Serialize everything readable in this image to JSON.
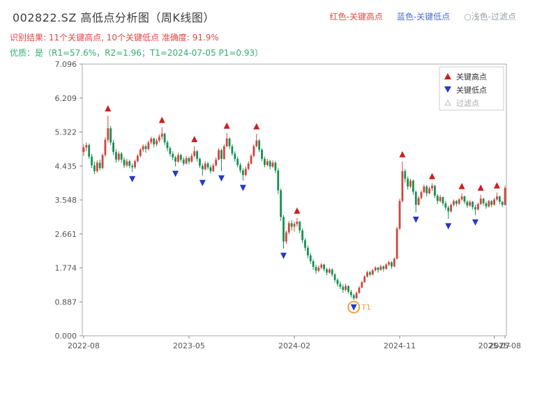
{
  "header": {
    "title": "002822.SZ 高低点分析图（周K线图）",
    "legend_inline": [
      {
        "label": "红色-关键高点",
        "color": "#e04a44"
      },
      {
        "label": "蓝色-关键低点",
        "color": "#4f6bd0"
      },
      {
        "label": "○浅色-过滤点",
        "color": "#9aa0a8"
      }
    ],
    "result_line": "识别结果: 11个关键高点, 10个关键低点  准确度: 91.9%",
    "result_color": "#e34545",
    "quality_line": "优质：是（R1=57.6%，R2=1.96；T1=2024-07-05 P1=0.93）",
    "quality_color": "#2fae6e"
  },
  "chart_data": {
    "type": "candlestick",
    "title": "002822.SZ 高低点分析图（周K线图）",
    "ylim": [
      0,
      7.096
    ],
    "y_ticks": [
      0,
      0.887,
      1.774,
      2.661,
      3.548,
      4.435,
      5.322,
      6.209,
      7.096
    ],
    "x_ticks": [
      {
        "week": 0,
        "label": "2022-08"
      },
      {
        "week": 39,
        "label": "2023-05"
      },
      {
        "week": 78,
        "label": "2024-02"
      },
      {
        "week": 117,
        "label": "2024-11"
      },
      {
        "week": 152,
        "label": "2025-07"
      },
      {
        "week": 156,
        "label": "2025-08"
      }
    ],
    "legend": [
      {
        "label": "关键高点",
        "marker": "up",
        "color": "#cc1f1f",
        "muted": false
      },
      {
        "label": "关键低点",
        "marker": "down",
        "color": "#2438c8",
        "muted": false
      },
      {
        "label": "过滤点",
        "marker": "hollow",
        "color": "#bbbbbb",
        "muted": true
      }
    ],
    "colors": {
      "up": "#d0453e",
      "down": "#169150",
      "key_high": "#cc1f1f",
      "key_low": "#2438c8",
      "t1": "#f2a33c",
      "axis": "#aaaaaa",
      "tick_text": "#555555"
    },
    "candles": [
      [
        4.8,
        5.0,
        4.7,
        4.92
      ],
      [
        4.92,
        5.05,
        4.82,
        4.98
      ],
      [
        4.98,
        5.02,
        4.62,
        4.68
      ],
      [
        4.68,
        4.75,
        4.38,
        4.45
      ],
      [
        4.45,
        4.55,
        4.22,
        4.3
      ],
      [
        4.3,
        4.58,
        4.26,
        4.52
      ],
      [
        4.52,
        4.6,
        4.32,
        4.38
      ],
      [
        4.38,
        4.76,
        4.35,
        4.72
      ],
      [
        4.72,
        5.18,
        4.68,
        5.12
      ],
      [
        5.12,
        5.75,
        5.05,
        5.42
      ],
      [
        5.42,
        5.48,
        4.98,
        5.05
      ],
      [
        5.05,
        5.12,
        4.72,
        4.8
      ],
      [
        4.8,
        4.88,
        4.52,
        4.6
      ],
      [
        4.6,
        4.82,
        4.55,
        4.76
      ],
      [
        4.76,
        4.8,
        4.52,
        4.6
      ],
      [
        4.6,
        4.66,
        4.38,
        4.45
      ],
      [
        4.45,
        4.62,
        4.4,
        4.56
      ],
      [
        4.56,
        4.6,
        4.38,
        4.44
      ],
      [
        4.44,
        4.5,
        4.28,
        4.4
      ],
      [
        4.4,
        4.6,
        4.36,
        4.56
      ],
      [
        4.56,
        4.75,
        4.52,
        4.7
      ],
      [
        4.7,
        4.9,
        4.66,
        4.86
      ],
      [
        4.86,
        5.0,
        4.8,
        4.95
      ],
      [
        4.95,
        5.0,
        4.78,
        4.88
      ],
      [
        4.88,
        5.1,
        4.84,
        5.05
      ],
      [
        5.05,
        5.2,
        5.0,
        5.15
      ],
      [
        5.15,
        5.18,
        4.92,
        5.0
      ],
      [
        5.0,
        5.15,
        4.95,
        5.1
      ],
      [
        5.1,
        5.26,
        5.05,
        5.2
      ],
      [
        5.2,
        5.45,
        5.12,
        5.28
      ],
      [
        5.28,
        5.3,
        4.98,
        5.05
      ],
      [
        5.05,
        5.1,
        4.82,
        4.9
      ],
      [
        4.9,
        4.95,
        4.68,
        4.75
      ],
      [
        4.75,
        4.82,
        4.58,
        4.66
      ],
      [
        4.66,
        4.7,
        4.42,
        4.55
      ],
      [
        4.55,
        4.78,
        4.52,
        4.72
      ],
      [
        4.72,
        4.76,
        4.54,
        4.6
      ],
      [
        4.6,
        4.66,
        4.44,
        4.5
      ],
      [
        4.5,
        4.7,
        4.47,
        4.64
      ],
      [
        4.64,
        4.68,
        4.48,
        4.55
      ],
      [
        4.55,
        4.76,
        4.52,
        4.7
      ],
      [
        4.7,
        4.95,
        4.66,
        4.82
      ],
      [
        4.82,
        4.85,
        4.55,
        4.62
      ],
      [
        4.62,
        4.66,
        4.38,
        4.44
      ],
      [
        4.44,
        4.5,
        4.18,
        4.35
      ],
      [
        4.35,
        4.56,
        4.32,
        4.5
      ],
      [
        4.5,
        4.55,
        4.34,
        4.4
      ],
      [
        4.4,
        4.46,
        4.24,
        4.3
      ],
      [
        4.3,
        4.5,
        4.28,
        4.45
      ],
      [
        4.45,
        4.66,
        4.42,
        4.6
      ],
      [
        4.6,
        4.9,
        4.58,
        4.85
      ],
      [
        4.85,
        4.88,
        4.3,
        4.62
      ],
      [
        4.62,
        5.0,
        4.6,
        4.95
      ],
      [
        4.95,
        5.3,
        4.92,
        5.15
      ],
      [
        5.15,
        5.18,
        4.88,
        4.95
      ],
      [
        4.95,
        5.0,
        4.7,
        4.76
      ],
      [
        4.76,
        4.82,
        4.55,
        4.62
      ],
      [
        4.62,
        4.68,
        4.4,
        4.46
      ],
      [
        4.46,
        4.52,
        4.25,
        4.32
      ],
      [
        4.32,
        4.38,
        4.05,
        4.2
      ],
      [
        4.2,
        4.42,
        4.16,
        4.36
      ],
      [
        4.36,
        4.56,
        4.32,
        4.5
      ],
      [
        4.5,
        4.75,
        4.47,
        4.7
      ],
      [
        4.7,
        5.0,
        4.66,
        4.95
      ],
      [
        4.95,
        5.28,
        4.92,
        5.1
      ],
      [
        5.1,
        5.14,
        4.8,
        4.86
      ],
      [
        4.86,
        4.9,
        4.56,
        4.62
      ],
      [
        4.62,
        4.68,
        4.4,
        4.46
      ],
      [
        4.46,
        4.62,
        4.42,
        4.56
      ],
      [
        4.56,
        4.6,
        4.35,
        4.42
      ],
      [
        4.42,
        4.58,
        4.38,
        4.52
      ],
      [
        4.52,
        4.56,
        4.25,
        4.32
      ],
      [
        4.32,
        4.38,
        3.7,
        3.8
      ],
      [
        3.8,
        3.85,
        3.0,
        3.1
      ],
      [
        3.1,
        3.15,
        2.28,
        2.46
      ],
      [
        2.46,
        2.75,
        2.4,
        2.7
      ],
      [
        2.7,
        3.0,
        2.65,
        2.94
      ],
      [
        2.94,
        3.02,
        2.75,
        2.85
      ],
      [
        2.85,
        2.98,
        2.72,
        2.92
      ],
      [
        2.92,
        3.08,
        2.85,
        2.98
      ],
      [
        2.98,
        3.0,
        2.68,
        2.75
      ],
      [
        2.75,
        2.8,
        2.42,
        2.5
      ],
      [
        2.5,
        2.55,
        2.22,
        2.3
      ],
      [
        2.3,
        2.36,
        2.02,
        2.1
      ],
      [
        2.1,
        2.16,
        1.88,
        1.95
      ],
      [
        1.95,
        2.0,
        1.72,
        1.8
      ],
      [
        1.8,
        1.86,
        1.62,
        1.7
      ],
      [
        1.7,
        1.84,
        1.66,
        1.78
      ],
      [
        1.78,
        1.9,
        1.74,
        1.86
      ],
      [
        1.86,
        1.88,
        1.68,
        1.74
      ],
      [
        1.74,
        1.78,
        1.58,
        1.65
      ],
      [
        1.65,
        1.78,
        1.62,
        1.73
      ],
      [
        1.73,
        1.76,
        1.54,
        1.6
      ],
      [
        1.6,
        1.64,
        1.4,
        1.46
      ],
      [
        1.46,
        1.5,
        1.28,
        1.35
      ],
      [
        1.35,
        1.42,
        1.22,
        1.28
      ],
      [
        1.28,
        1.34,
        1.12,
        1.2
      ],
      [
        1.2,
        1.36,
        1.16,
        1.3
      ],
      [
        1.3,
        1.32,
        1.1,
        1.15
      ],
      [
        1.15,
        1.2,
        1.0,
        1.06
      ],
      [
        1.06,
        1.1,
        0.93,
        0.98
      ],
      [
        0.98,
        1.15,
        0.96,
        1.12
      ],
      [
        1.12,
        1.3,
        1.1,
        1.26
      ],
      [
        1.26,
        1.44,
        1.24,
        1.4
      ],
      [
        1.4,
        1.58,
        1.38,
        1.55
      ],
      [
        1.55,
        1.7,
        1.52,
        1.66
      ],
      [
        1.66,
        1.7,
        1.55,
        1.6
      ],
      [
        1.6,
        1.75,
        1.58,
        1.71
      ],
      [
        1.71,
        1.82,
        1.68,
        1.78
      ],
      [
        1.78,
        1.8,
        1.65,
        1.72
      ],
      [
        1.72,
        1.85,
        1.7,
        1.81
      ],
      [
        1.81,
        1.84,
        1.68,
        1.75
      ],
      [
        1.75,
        1.9,
        1.72,
        1.86
      ],
      [
        1.86,
        1.96,
        1.82,
        1.92
      ],
      [
        1.92,
        1.95,
        1.75,
        1.81
      ],
      [
        1.81,
        2.05,
        1.79,
        2.01
      ],
      [
        2.01,
        2.85,
        2.0,
        2.8
      ],
      [
        2.8,
        3.58,
        2.76,
        3.52
      ],
      [
        3.52,
        4.55,
        3.48,
        4.3
      ],
      [
        4.3,
        4.36,
        4.0,
        4.1
      ],
      [
        4.1,
        4.16,
        3.82,
        3.9
      ],
      [
        3.9,
        4.1,
        3.85,
        4.05
      ],
      [
        4.05,
        4.08,
        3.68,
        3.76
      ],
      [
        3.76,
        3.8,
        3.22,
        3.42
      ],
      [
        3.42,
        3.65,
        3.4,
        3.6
      ],
      [
        3.6,
        3.8,
        3.56,
        3.75
      ],
      [
        3.75,
        3.95,
        3.72,
        3.9
      ],
      [
        3.9,
        3.94,
        3.64,
        3.72
      ],
      [
        3.72,
        3.9,
        3.7,
        3.85
      ],
      [
        3.85,
        3.98,
        3.78,
        3.92
      ],
      [
        3.92,
        3.94,
        3.6,
        3.66
      ],
      [
        3.66,
        3.7,
        3.44,
        3.52
      ],
      [
        3.52,
        3.68,
        3.48,
        3.62
      ],
      [
        3.62,
        3.64,
        3.4,
        3.46
      ],
      [
        3.46,
        3.52,
        3.28,
        3.35
      ],
      [
        3.35,
        3.4,
        3.05,
        3.25
      ],
      [
        3.25,
        3.46,
        3.22,
        3.42
      ],
      [
        3.42,
        3.56,
        3.38,
        3.52
      ],
      [
        3.52,
        3.55,
        3.38,
        3.45
      ],
      [
        3.45,
        3.6,
        3.42,
        3.56
      ],
      [
        3.56,
        3.72,
        3.52,
        3.64
      ],
      [
        3.64,
        3.66,
        3.44,
        3.5
      ],
      [
        3.5,
        3.54,
        3.34,
        3.4
      ],
      [
        3.4,
        3.54,
        3.37,
        3.5
      ],
      [
        3.5,
        3.52,
        3.3,
        3.36
      ],
      [
        3.36,
        3.42,
        3.15,
        3.3
      ],
      [
        3.3,
        3.48,
        3.27,
        3.44
      ],
      [
        3.44,
        3.68,
        3.42,
        3.58
      ],
      [
        3.58,
        3.6,
        3.4,
        3.46
      ],
      [
        3.46,
        3.5,
        3.32,
        3.38
      ],
      [
        3.38,
        3.55,
        3.35,
        3.52
      ],
      [
        3.52,
        3.54,
        3.36,
        3.42
      ],
      [
        3.42,
        3.6,
        3.4,
        3.56
      ],
      [
        3.56,
        3.74,
        3.52,
        3.64
      ],
      [
        3.64,
        3.66,
        3.44,
        3.5
      ],
      [
        3.5,
        3.52,
        3.36,
        3.42
      ],
      [
        3.42,
        3.92,
        3.4,
        3.86
      ]
    ],
    "key_highs": [
      9,
      29,
      41,
      53,
      64,
      79,
      118,
      129,
      140,
      147,
      153
    ],
    "key_lows": [
      18,
      34,
      44,
      51,
      59,
      74,
      100,
      123,
      135,
      145
    ],
    "t1": {
      "week": 100,
      "label": "T1",
      "price": 0.93
    }
  }
}
